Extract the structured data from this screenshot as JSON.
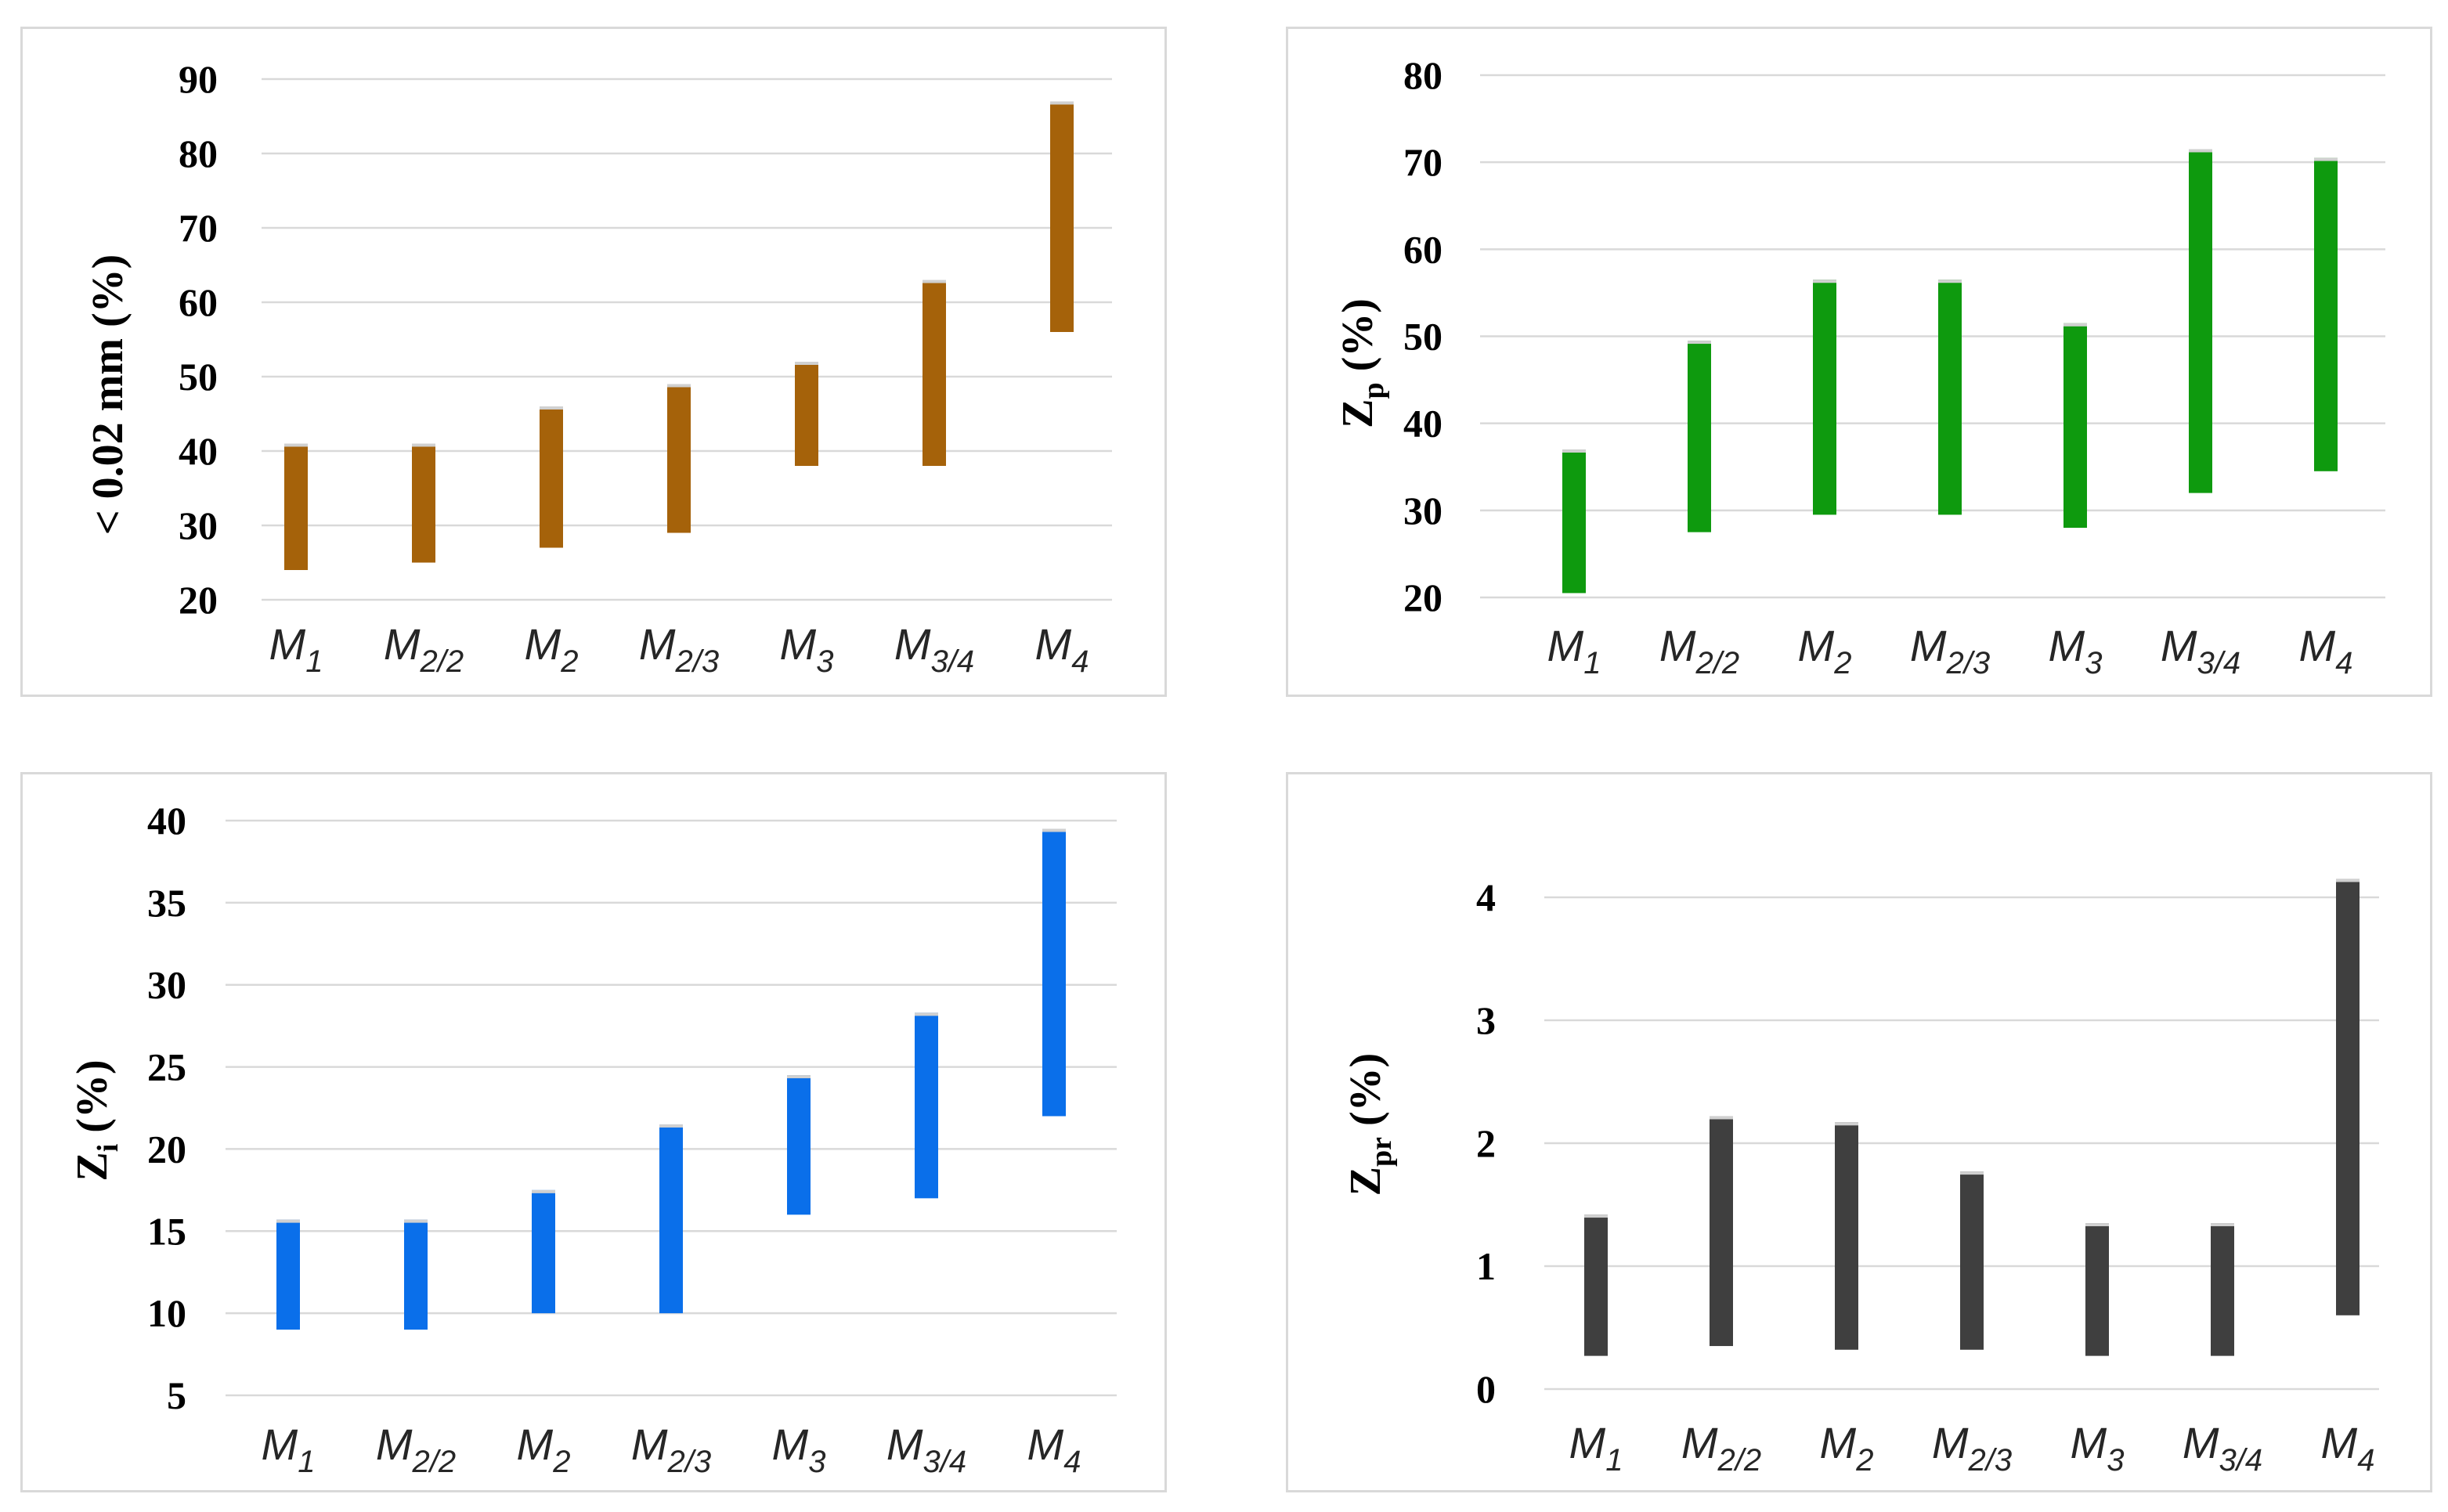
{
  "chart_data": [
    {
      "type": "bar",
      "subtype": "range",
      "ylabel": "< 0.02 mm (%)",
      "ylabel_main": "< 0.02 mm (%)",
      "ylabel_sub": "",
      "ylabel_tail": "",
      "ylim": [
        20,
        90
      ],
      "yticks": [
        20,
        30,
        40,
        50,
        60,
        70,
        80,
        90
      ],
      "color": "#A5620A",
      "categories": [
        {
          "main": "M",
          "sub": "1"
        },
        {
          "main": "M",
          "sub": "2/2"
        },
        {
          "main": "M",
          "sub": "2"
        },
        {
          "main": "M",
          "sub": "2/3"
        },
        {
          "main": "M",
          "sub": "3"
        },
        {
          "main": "M",
          "sub": "3/4"
        },
        {
          "main": "M",
          "sub": "4"
        }
      ],
      "low": [
        24,
        25,
        27,
        29,
        38,
        38,
        56
      ],
      "high": [
        41,
        41,
        46,
        49,
        52,
        63,
        87
      ]
    },
    {
      "type": "bar",
      "subtype": "range",
      "ylabel": "Zp (%)",
      "ylabel_main": "Z",
      "ylabel_sub": "p",
      "ylabel_tail": " (%)",
      "ylim": [
        20,
        80
      ],
      "yticks": [
        20,
        30,
        40,
        50,
        60,
        70,
        80
      ],
      "color": "#0E9A0E",
      "categories": [
        {
          "main": "M",
          "sub": "1"
        },
        {
          "main": "M",
          "sub": "2/2"
        },
        {
          "main": "M",
          "sub": "2"
        },
        {
          "main": "M",
          "sub": "2/3"
        },
        {
          "main": "M",
          "sub": "3"
        },
        {
          "main": "M",
          "sub": "3/4"
        },
        {
          "main": "M",
          "sub": "4"
        }
      ],
      "low": [
        20.5,
        27.5,
        29.5,
        29.5,
        28,
        32,
        34.5
      ],
      "high": [
        37,
        49.5,
        56.5,
        56.5,
        51.5,
        71.5,
        70.5
      ]
    },
    {
      "type": "bar",
      "subtype": "range",
      "ylabel": "Zi (%)",
      "ylabel_main": "Z",
      "ylabel_sub": "i",
      "ylabel_tail": " (%)",
      "ylim": [
        5,
        40
      ],
      "yticks": [
        5,
        10,
        15,
        20,
        25,
        30,
        35,
        40
      ],
      "color": "#0A6FEA",
      "categories": [
        {
          "main": "M",
          "sub": "1"
        },
        {
          "main": "M",
          "sub": "2/2"
        },
        {
          "main": "M",
          "sub": "2"
        },
        {
          "main": "M",
          "sub": "2/3"
        },
        {
          "main": "M",
          "sub": "3"
        },
        {
          "main": "M",
          "sub": "3/4"
        },
        {
          "main": "M",
          "sub": "4"
        }
      ],
      "low": [
        9,
        9,
        10,
        10,
        16,
        17,
        22
      ],
      "high": [
        15.7,
        15.7,
        17.5,
        21.5,
        24.5,
        28.3,
        39.5
      ]
    },
    {
      "type": "bar",
      "subtype": "range",
      "ylabel": "Zpr (%)",
      "ylabel_main": "Z",
      "ylabel_sub": "pr",
      "ylabel_tail": " (%)",
      "ylim": [
        0,
        4
      ],
      "yticks": [
        0,
        1,
        2,
        3,
        4
      ],
      "color": "#3F3F3F",
      "categories": [
        {
          "main": "M",
          "sub": "1"
        },
        {
          "main": "M",
          "sub": "2/2"
        },
        {
          "main": "M",
          "sub": "2"
        },
        {
          "main": "M",
          "sub": "2/3"
        },
        {
          "main": "M",
          "sub": "3"
        },
        {
          "main": "M",
          "sub": "3/4"
        },
        {
          "main": "M",
          "sub": "4"
        }
      ],
      "low": [
        0.27,
        0.35,
        0.32,
        0.32,
        0.27,
        0.27,
        0.6
      ],
      "high": [
        1.42,
        2.22,
        2.17,
        1.77,
        1.35,
        1.35,
        4.15
      ]
    }
  ]
}
